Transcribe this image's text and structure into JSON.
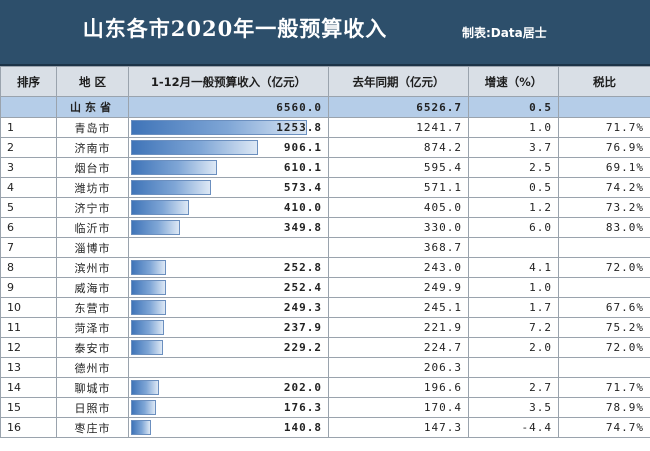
{
  "title": "山东各市2020年一般预算收入",
  "credit": "制表:Data居士",
  "columns": {
    "rank": "排序",
    "region": "地 区",
    "revenue": "1-12月一般预算收入（亿元）",
    "last_year": "去年同期（亿元）",
    "growth": "增速（%）",
    "tax_ratio": "税比"
  },
  "province": {
    "region": "山东省",
    "revenue": "6560.0",
    "last_year": "6526.7",
    "growth": "0.5",
    "tax_ratio": ""
  },
  "rows": [
    {
      "rank": "1",
      "region": "青岛市",
      "revenue": "1253.8",
      "revenue_value": 1253.8,
      "last_year": "1241.7",
      "growth": "1.0",
      "tax_ratio": "71.7%"
    },
    {
      "rank": "2",
      "region": "济南市",
      "revenue": "906.1",
      "revenue_value": 906.1,
      "last_year": "874.2",
      "growth": "3.7",
      "tax_ratio": "76.9%"
    },
    {
      "rank": "3",
      "region": "烟台市",
      "revenue": "610.1",
      "revenue_value": 610.1,
      "last_year": "595.4",
      "growth": "2.5",
      "tax_ratio": "69.1%"
    },
    {
      "rank": "4",
      "region": "潍坊市",
      "revenue": "573.4",
      "revenue_value": 573.4,
      "last_year": "571.1",
      "growth": "0.5",
      "tax_ratio": "74.2%"
    },
    {
      "rank": "5",
      "region": "济宁市",
      "revenue": "410.0",
      "revenue_value": 410.0,
      "last_year": "405.0",
      "growth": "1.2",
      "tax_ratio": "73.2%"
    },
    {
      "rank": "6",
      "region": "临沂市",
      "revenue": "349.8",
      "revenue_value": 349.8,
      "last_year": "330.0",
      "growth": "6.0",
      "tax_ratio": "83.0%"
    },
    {
      "rank": "7",
      "region": "淄博市",
      "revenue": "",
      "revenue_value": 0,
      "last_year": "368.7",
      "growth": "",
      "tax_ratio": ""
    },
    {
      "rank": "8",
      "region": "滨州市",
      "revenue": "252.8",
      "revenue_value": 252.8,
      "last_year": "243.0",
      "growth": "4.1",
      "tax_ratio": "72.0%"
    },
    {
      "rank": "9",
      "region": "威海市",
      "revenue": "252.4",
      "revenue_value": 252.4,
      "last_year": "249.9",
      "growth": "1.0",
      "tax_ratio": ""
    },
    {
      "rank": "10",
      "region": "东营市",
      "revenue": "249.3",
      "revenue_value": 249.3,
      "last_year": "245.1",
      "growth": "1.7",
      "tax_ratio": "67.6%"
    },
    {
      "rank": "11",
      "region": "菏泽市",
      "revenue": "237.9",
      "revenue_value": 237.9,
      "last_year": "221.9",
      "growth": "7.2",
      "tax_ratio": "75.2%"
    },
    {
      "rank": "12",
      "region": "泰安市",
      "revenue": "229.2",
      "revenue_value": 229.2,
      "last_year": "224.7",
      "growth": "2.0",
      "tax_ratio": "72.0%"
    },
    {
      "rank": "13",
      "region": "德州市",
      "revenue": "",
      "revenue_value": 0,
      "last_year": "206.3",
      "growth": "",
      "tax_ratio": ""
    },
    {
      "rank": "14",
      "region": "聊城市",
      "revenue": "202.0",
      "revenue_value": 202.0,
      "last_year": "196.6",
      "growth": "2.7",
      "tax_ratio": "71.7%"
    },
    {
      "rank": "15",
      "region": "日照市",
      "revenue": "176.3",
      "revenue_value": 176.3,
      "last_year": "170.4",
      "growth": "3.5",
      "tax_ratio": "78.9%"
    },
    {
      "rank": "16",
      "region": "枣庄市",
      "revenue": "140.8",
      "revenue_value": 140.8,
      "last_year": "147.3",
      "growth": "-4.4",
      "tax_ratio": "74.7%"
    }
  ]
}
